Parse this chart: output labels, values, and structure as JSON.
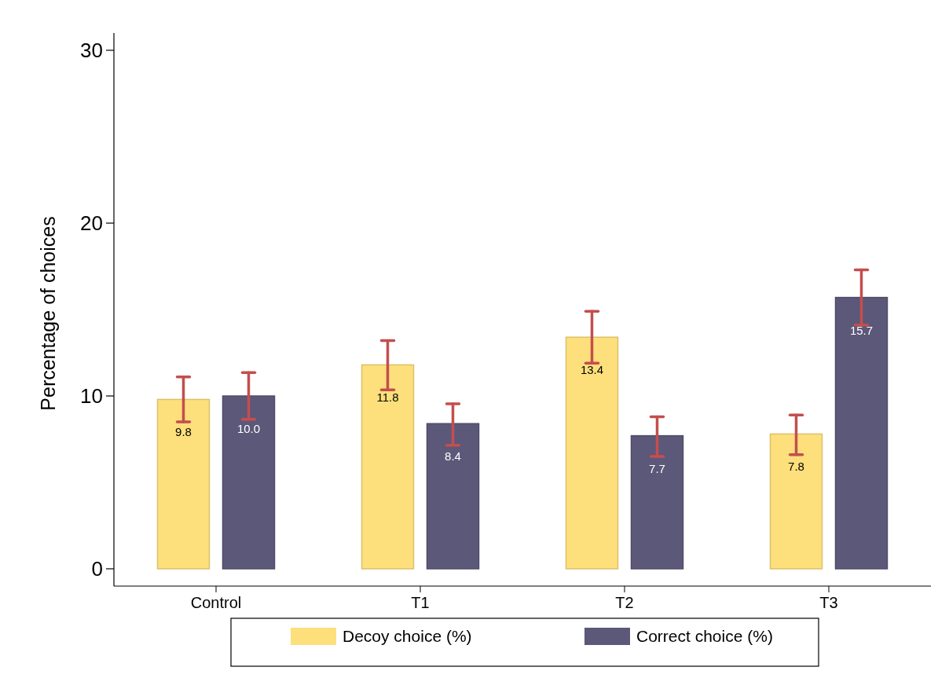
{
  "chart_data": {
    "type": "bar",
    "ylabel": "Percentage of choices",
    "categories": [
      "Control",
      "T1",
      "T2",
      "T3"
    ],
    "series": [
      {
        "name": "Decoy choice (%)",
        "color": "#fddf7b",
        "values": [
          9.8,
          11.8,
          13.4,
          7.8
        ],
        "value_labels": [
          "9.8",
          "11.8",
          "13.4",
          "7.8"
        ],
        "errors": [
          [
            8.5,
            11.1
          ],
          [
            10.35,
            13.2
          ],
          [
            11.9,
            14.9
          ],
          [
            6.6,
            8.9
          ]
        ]
      },
      {
        "name": "Correct choice (%)",
        "color": "#5c5879",
        "values": [
          10.0,
          8.4,
          7.7,
          15.7
        ],
        "value_labels": [
          "10.0",
          "8.4",
          "7.7",
          "15.7"
        ],
        "errors": [
          [
            8.65,
            11.35
          ],
          [
            7.15,
            9.55
          ],
          [
            6.5,
            8.8
          ],
          [
            14.1,
            17.3
          ]
        ]
      }
    ],
    "ylim": [
      -1,
      31
    ],
    "yticks": [
      0,
      10,
      20,
      30
    ],
    "legend": "bottom",
    "grid": false
  }
}
